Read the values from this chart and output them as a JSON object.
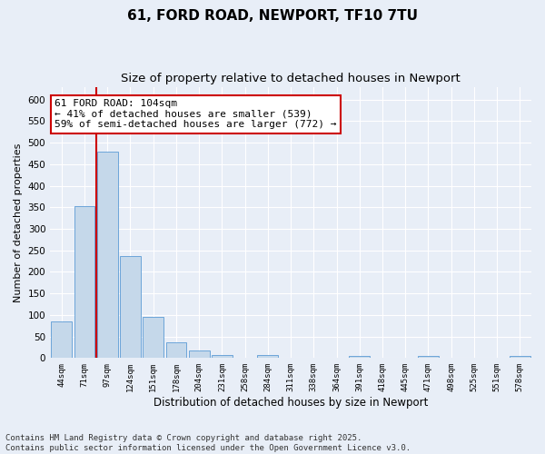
{
  "title": "61, FORD ROAD, NEWPORT, TF10 7TU",
  "subtitle": "Size of property relative to detached houses in Newport",
  "xlabel": "Distribution of detached houses by size in Newport",
  "ylabel": "Number of detached properties",
  "bar_color": "#c5d8ea",
  "bar_edge_color": "#5b9bd5",
  "categories": [
    "44sqm",
    "71sqm",
    "97sqm",
    "124sqm",
    "151sqm",
    "178sqm",
    "204sqm",
    "231sqm",
    "258sqm",
    "284sqm",
    "311sqm",
    "338sqm",
    "364sqm",
    "391sqm",
    "418sqm",
    "445sqm",
    "471sqm",
    "498sqm",
    "525sqm",
    "551sqm",
    "578sqm"
  ],
  "values": [
    85,
    352,
    480,
    237,
    95,
    37,
    18,
    8,
    0,
    7,
    0,
    0,
    0,
    5,
    0,
    0,
    5,
    0,
    0,
    0,
    5
  ],
  "ylim": [
    0,
    630
  ],
  "yticks": [
    0,
    50,
    100,
    150,
    200,
    250,
    300,
    350,
    400,
    450,
    500,
    550,
    600
  ],
  "vline_x": 1.5,
  "vline_color": "#cc0000",
  "annotation_text": "61 FORD ROAD: 104sqm\n← 41% of detached houses are smaller (539)\n59% of semi-detached houses are larger (772) →",
  "annotation_box_color": "#ffffff",
  "annotation_box_edge": "#cc0000",
  "background_color": "#e8eef7",
  "fig_background_color": "#e8eef7",
  "grid_color": "#ffffff",
  "footer_text": "Contains HM Land Registry data © Crown copyright and database right 2025.\nContains public sector information licensed under the Open Government Licence v3.0.",
  "title_fontsize": 11,
  "subtitle_fontsize": 9.5,
  "annotation_fontsize": 8,
  "footer_fontsize": 6.5,
  "ylabel_fontsize": 8,
  "xlabel_fontsize": 8.5
}
